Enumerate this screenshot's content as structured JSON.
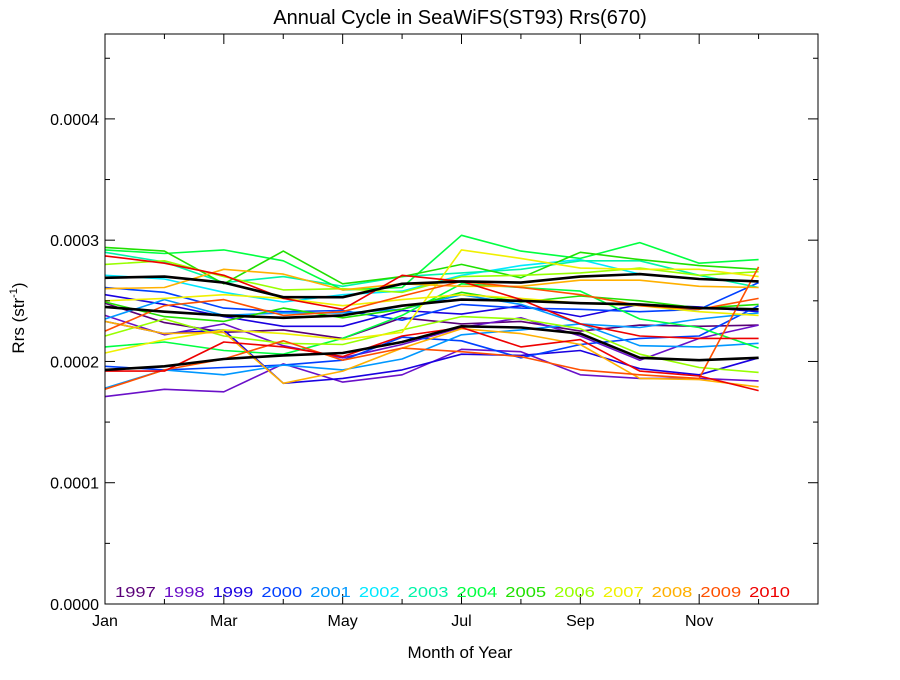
{
  "chart_data": {
    "type": "line",
    "title": "Annual Cycle in SeaWiFS(ST93) Rrs(670)",
    "xlabel": "Month of Year",
    "ylabel_main": "Rrs (str",
    "ylabel_sup": "-1",
    "ylabel_close": ")",
    "xlim": [
      1,
      13
    ],
    "ylim": [
      0,
      0.00047
    ],
    "x_ticks": [
      {
        "x": 1,
        "label": "Jan"
      },
      {
        "x": 3,
        "label": "Mar"
      },
      {
        "x": 5,
        "label": "May"
      },
      {
        "x": 7,
        "label": "Jul"
      },
      {
        "x": 9,
        "label": "Sep"
      },
      {
        "x": 11,
        "label": "Nov"
      }
    ],
    "y_ticks": [
      {
        "y": 0,
        "label": "0.0000"
      },
      {
        "y": 0.0001,
        "label": "0.0001"
      },
      {
        "y": 0.0002,
        "label": "0.0002"
      },
      {
        "y": 0.0003,
        "label": "0.0003"
      },
      {
        "y": 0.0004,
        "label": "0.0004"
      }
    ],
    "x": [
      1,
      2,
      3,
      4,
      5,
      6,
      7,
      8,
      9,
      10,
      11,
      12
    ],
    "legend_placement": "bottom inside plot",
    "legend": [
      {
        "label": "1997",
        "color": "#5a0078"
      },
      {
        "label": "1998",
        "color": "#6a10c8"
      },
      {
        "label": "1999",
        "color": "#1a00e0"
      },
      {
        "label": "2000",
        "color": "#0040ff"
      },
      {
        "label": "2001",
        "color": "#0098ff"
      },
      {
        "label": "2002",
        "color": "#00e8ff"
      },
      {
        "label": "2003",
        "color": "#00f5a8"
      },
      {
        "label": "2004",
        "color": "#00ff40"
      },
      {
        "label": "2005",
        "color": "#20e000"
      },
      {
        "label": "2006",
        "color": "#98ff00"
      },
      {
        "label": "2007",
        "color": "#f0f000"
      },
      {
        "label": "2008",
        "color": "#ffb000"
      },
      {
        "label": "2009",
        "color": "#ff5000"
      },
      {
        "label": "2010",
        "color": "#ee0000"
      }
    ],
    "series": [
      {
        "color": "#5a0078",
        "values": [
          0.000248,
          0.000232,
          0.000224,
          0.000226,
          0.000219,
          0.000236,
          0.000231,
          0.000233,
          0.000225,
          0.00023,
          0.000229,
          0.00023
        ]
      },
      {
        "color": "#6a10c8",
        "values": [
          0.000171,
          0.000177,
          0.000175,
          0.000198,
          0.000183,
          0.000189,
          0.00021,
          0.000208,
          0.000189,
          0.000186,
          0.000186,
          0.000184
        ]
      },
      {
        "color": "#6a10c8",
        "values": [
          0.000238,
          0.000222,
          0.000231,
          0.000213,
          0.000203,
          0.000214,
          0.000228,
          0.000236,
          0.000221,
          0.000201,
          0.000219,
          0.00023
        ]
      },
      {
        "color": "#1a00e0",
        "values": [
          0.000233,
          0.000223,
          0.000226,
          0.000182,
          0.000186,
          0.000193,
          0.000206,
          0.000205,
          0.000209,
          0.000194,
          0.000189,
          0.000203
        ]
      },
      {
        "color": "#1a00e0",
        "values": [
          0.000255,
          0.000247,
          0.000237,
          0.000229,
          0.000229,
          0.000242,
          0.000239,
          0.000246,
          0.000237,
          0.000247,
          0.000245,
          0.000241
        ]
      },
      {
        "color": "#0040ff",
        "values": [
          0.000196,
          0.000193,
          0.000195,
          0.000197,
          0.000201,
          0.00022,
          0.000217,
          0.000203,
          0.000214,
          0.000219,
          0.000221,
          0.000246
        ]
      },
      {
        "color": "#0040ff",
        "values": [
          0.000261,
          0.000257,
          0.000244,
          0.000241,
          0.000242,
          0.000234,
          0.000247,
          0.000244,
          0.000243,
          0.000241,
          0.000243,
          0.000265
        ]
      },
      {
        "color": "#0098ff",
        "values": [
          0.000178,
          0.000193,
          0.000189,
          0.000197,
          0.000193,
          0.000202,
          0.000222,
          0.000226,
          0.000231,
          0.000213,
          0.000212,
          0.000215
        ]
      },
      {
        "color": "#0098ff",
        "values": [
          0.000235,
          0.000251,
          0.000238,
          0.00024,
          0.00024,
          0.000243,
          0.000255,
          0.000247,
          0.000231,
          0.000228,
          0.000235,
          0.00024
        ]
      },
      {
        "color": "#00e8ff",
        "values": [
          0.000271,
          0.000268,
          0.000257,
          0.000249,
          0.000255,
          0.000258,
          0.000271,
          0.000279,
          0.000284,
          0.000272,
          0.000268,
          0.000266
        ]
      },
      {
        "color": "#00f5a8",
        "values": [
          0.00029,
          0.000282,
          0.000265,
          0.00027,
          0.000262,
          0.00027,
          0.000273,
          0.000276,
          0.000283,
          0.000283,
          0.000271,
          0.000261
        ]
      },
      {
        "color": "#00ff40",
        "values": [
          0.000292,
          0.000289,
          0.000292,
          0.000283,
          0.000259,
          0.000261,
          0.000304,
          0.000291,
          0.000285,
          0.000298,
          0.000281,
          0.000284
        ]
      },
      {
        "color": "#00ff40",
        "values": [
          0.000212,
          0.000216,
          0.000209,
          0.000206,
          0.000219,
          0.000238,
          0.000264,
          0.000261,
          0.000258,
          0.000235,
          0.000228,
          0.000211
        ]
      },
      {
        "color": "#20e000",
        "values": [
          0.000294,
          0.000291,
          0.000264,
          0.000291,
          0.000264,
          0.00027,
          0.00028,
          0.000269,
          0.00029,
          0.000284,
          0.000279,
          0.000276
        ]
      },
      {
        "color": "#20e000",
        "values": [
          0.000249,
          0.000237,
          0.000233,
          0.000244,
          0.000236,
          0.000243,
          0.000257,
          0.000249,
          0.000254,
          0.00025,
          0.000244,
          0.000247
        ]
      },
      {
        "color": "#98ff00",
        "values": [
          0.00028,
          0.000283,
          0.00027,
          0.000259,
          0.00026,
          0.000257,
          0.00027,
          0.000271,
          0.000273,
          0.000277,
          0.000271,
          0.000274
        ]
      },
      {
        "color": "#98ff00",
        "values": [
          0.000221,
          0.000235,
          0.000221,
          0.000215,
          0.000214,
          0.000226,
          0.000237,
          0.000235,
          0.000227,
          0.000206,
          0.000195,
          0.000191
        ]
      },
      {
        "color": "#f0f000",
        "values": [
          0.000207,
          0.000218,
          0.000226,
          0.000223,
          0.000218,
          0.000224,
          0.000292,
          0.000285,
          0.000277,
          0.000276,
          0.000276,
          0.00027
        ]
      },
      {
        "color": "#f0f000",
        "values": [
          0.00025,
          0.000252,
          0.000255,
          0.000252,
          0.000246,
          0.000251,
          0.000255,
          0.000252,
          0.000248,
          0.000246,
          0.000241,
          0.000238
        ]
      },
      {
        "color": "#ffb000",
        "values": [
          0.000233,
          0.000223,
          0.000224,
          0.000182,
          0.000192,
          0.000211,
          0.000227,
          0.000223,
          0.000214,
          0.000186,
          0.000185,
          0.000179
        ]
      },
      {
        "color": "#ffb000",
        "values": [
          0.00026,
          0.000261,
          0.000276,
          0.000272,
          0.000259,
          0.000264,
          0.000262,
          0.000262,
          0.000267,
          0.000267,
          0.000262,
          0.000261
        ]
      },
      {
        "color": "#ff5000",
        "values": [
          0.000177,
          0.000193,
          0.000202,
          0.000217,
          0.000201,
          0.000211,
          0.000208,
          0.000204,
          0.000193,
          0.000189,
          0.000186,
          0.000278
        ]
      },
      {
        "color": "#ff5000",
        "values": [
          0.000225,
          0.000246,
          0.000251,
          0.000238,
          0.000241,
          0.000254,
          0.000266,
          0.000261,
          0.000255,
          0.000246,
          0.000243,
          0.000252
        ]
      },
      {
        "color": "#ee0000",
        "values": [
          0.000287,
          0.000281,
          0.000271,
          0.000252,
          0.000243,
          0.000271,
          0.000266,
          0.000251,
          0.000231,
          0.000221,
          0.000219,
          0.000219
        ]
      },
      {
        "color": "#ee0000",
        "values": [
          0.000192,
          0.000192,
          0.000216,
          0.000212,
          0.000204,
          0.000221,
          0.000228,
          0.000212,
          0.000218,
          0.000192,
          0.000188,
          0.000176
        ]
      },
      {
        "color": "#000000",
        "width": 2.6,
        "values": [
          0.000269,
          0.00027,
          0.000265,
          0.000253,
          0.000253,
          0.000264,
          0.000266,
          0.000265,
          0.00027,
          0.000272,
          0.000268,
          0.000266
        ]
      },
      {
        "color": "#000000",
        "width": 2.6,
        "values": [
          0.000245,
          0.000241,
          0.000238,
          0.000236,
          0.000238,
          0.000246,
          0.000251,
          0.00025,
          0.000248,
          0.000247,
          0.000244,
          0.000243
        ]
      },
      {
        "color": "#000000",
        "width": 2.6,
        "values": [
          0.000193,
          0.000196,
          0.000202,
          0.000205,
          0.000207,
          0.000216,
          0.000229,
          0.000228,
          0.000223,
          0.000203,
          0.000201,
          0.000203
        ]
      }
    ]
  }
}
